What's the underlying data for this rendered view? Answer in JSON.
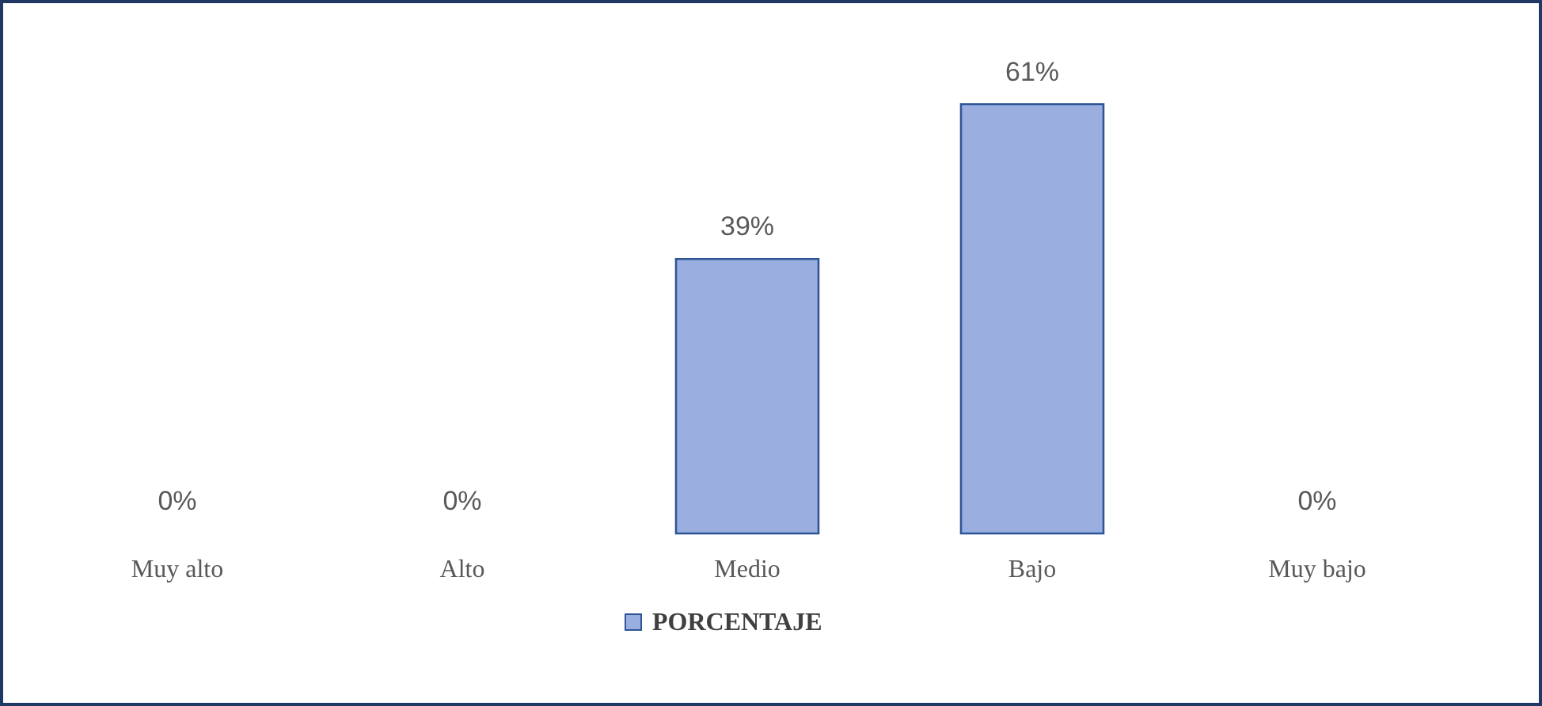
{
  "chart_data": {
    "type": "bar",
    "categories": [
      "Muy alto",
      "Alto",
      "Medio",
      "Bajo",
      "Muy bajo"
    ],
    "series": [
      {
        "name": "PORCENTAJE",
        "color": "#9aafe0",
        "values": [
          0,
          0,
          39,
          61,
          0
        ],
        "value_labels": [
          "0%",
          "0%",
          "39%",
          "61%",
          "0%"
        ]
      }
    ],
    "legend": "bottom",
    "grid": false
  }
}
